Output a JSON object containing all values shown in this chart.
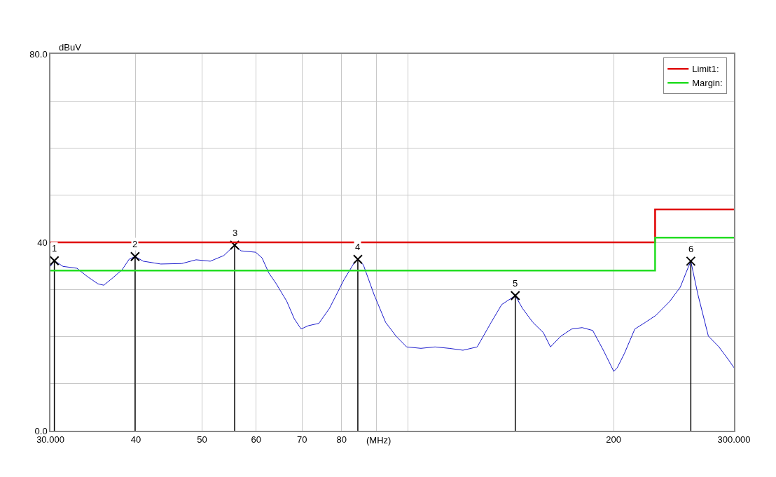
{
  "chart_data": {
    "type": "line",
    "ylabel": "dBuV",
    "xlabel": "(MHz)",
    "log": "x",
    "xlim": [
      30,
      300
    ],
    "xticks": [
      {
        "value": 30,
        "label": "30.000"
      },
      40,
      50,
      60,
      70,
      80,
      {
        "value": 90,
        "label": null
      },
      {
        "value": 100,
        "label": null
      },
      200,
      {
        "value": 300,
        "label": "300.000"
      }
    ],
    "ylim": [
      0,
      80
    ],
    "yticks": [
      {
        "value": 0,
        "label": "0.0"
      },
      {
        "value": 10,
        "label": null
      },
      {
        "value": 20,
        "label": null
      },
      {
        "value": 30,
        "label": null
      },
      40,
      {
        "value": 50,
        "label": null
      },
      {
        "value": 60,
        "label": null
      },
      {
        "value": 70,
        "label": null
      },
      {
        "value": 80,
        "label": "80.0"
      }
    ],
    "grid": true,
    "legend": "top right",
    "annotations": [
      {
        "text": "1",
        "x": 30.4,
        "y": 36.1
      },
      {
        "text": "2",
        "x": 39.9,
        "y": 37.0
      },
      {
        "text": "3",
        "x": 55.8,
        "y": 39.4
      },
      {
        "text": "4",
        "x": 84.5,
        "y": 36.4
      },
      {
        "text": "5",
        "x": 143.6,
        "y": 28.7
      },
      {
        "text": "6",
        "x": 259.4,
        "y": 36.0
      }
    ],
    "series": [
      {
        "color": "#1a1acc",
        "x": [
          30,
          30.4,
          31.3,
          32.8,
          34.0,
          35.2,
          35.9,
          36.9,
          38.2,
          39.1,
          39.9,
          41.0,
          43.5,
          46.7,
          49.0,
          51.4,
          53.8,
          55.8,
          57.0,
          59.9,
          61.2,
          62.6,
          64.2,
          66.5,
          68.2,
          69.8,
          71.5,
          74.1,
          76.8,
          80.6,
          83.5,
          84.5,
          86.1,
          89.2,
          92.8,
          96.1,
          99.6,
          104.5,
          109.6,
          114.9,
          120.4,
          126.3,
          132.4,
          137.2,
          143.6,
          147.1,
          152.4,
          157.9,
          161.7,
          167.5,
          173.6,
          179.9,
          186.4,
          193.2,
          197.8,
          200.1,
          202.5,
          207.4,
          214.8,
          222.5,
          230.6,
          241.7,
          250.4,
          256.3,
          259.4,
          265.6,
          275.2,
          285.2,
          295.1,
          300
        ],
        "values": [
          34.9,
          36.1,
          34.9,
          34.5,
          32.7,
          31.2,
          30.9,
          32.3,
          34.2,
          36.4,
          37.0,
          36.0,
          35.4,
          35.5,
          36.3,
          36.0,
          37.2,
          39.4,
          38.2,
          37.9,
          36.7,
          33.5,
          31.2,
          27.5,
          23.8,
          21.6,
          22.3,
          22.8,
          26.0,
          32.0,
          35.7,
          36.4,
          35.2,
          29.0,
          23.0,
          20.1,
          17.8,
          17.5,
          17.8,
          17.5,
          17.1,
          17.8,
          23.0,
          26.8,
          28.7,
          26.0,
          23.0,
          20.8,
          17.8,
          20.1,
          21.6,
          21.9,
          21.3,
          17.1,
          14.1,
          12.6,
          13.4,
          16.4,
          21.6,
          23.0,
          24.5,
          27.5,
          30.5,
          34.2,
          36.0,
          29.0,
          20.1,
          17.8,
          14.9,
          13.4
        ]
      },
      {
        "type": "lollipop",
        "color": "#000000",
        "marker": "cross",
        "x": [
          30.4,
          39.9,
          55.8,
          84.5,
          143.6,
          259.4
        ],
        "values": [
          36.1,
          37.0,
          39.4,
          36.4,
          28.7,
          36.0
        ]
      },
      {
        "type": "step",
        "name": "Limit1:",
        "color": "#e00000",
        "x": [
          30,
          230,
          300
        ],
        "values": [
          40,
          47,
          47
        ]
      },
      {
        "type": "step",
        "name": "Margin:",
        "color": "#22dd22",
        "x": [
          30,
          230,
          300
        ],
        "values": [
          34,
          41,
          41
        ]
      }
    ]
  }
}
